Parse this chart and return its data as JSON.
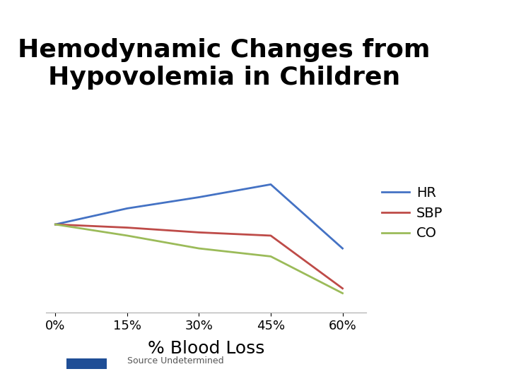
{
  "title": "Hemodynamic Changes from\nHypovolemia in Children",
  "xlabel": "% Blood Loss",
  "source_text": "Source Undetermined",
  "x_labels": [
    "0%",
    "15%",
    "30%",
    "45%",
    "60%"
  ],
  "x_values": [
    0,
    15,
    30,
    45,
    60
  ],
  "HR": [
    55,
    65,
    72,
    80,
    40
  ],
  "SBP": [
    55,
    53,
    50,
    48,
    15
  ],
  "CO": [
    55,
    48,
    40,
    35,
    12
  ],
  "HR_color": "#4472C4",
  "SBP_color": "#BE4B48",
  "CO_color": "#9BBB59",
  "background_color": "#FFFFFF",
  "grid_color": "#C0C0C0",
  "title_fontsize": 26,
  "xlabel_fontsize": 18,
  "legend_fontsize": 14,
  "ylim": [
    0,
    100
  ]
}
